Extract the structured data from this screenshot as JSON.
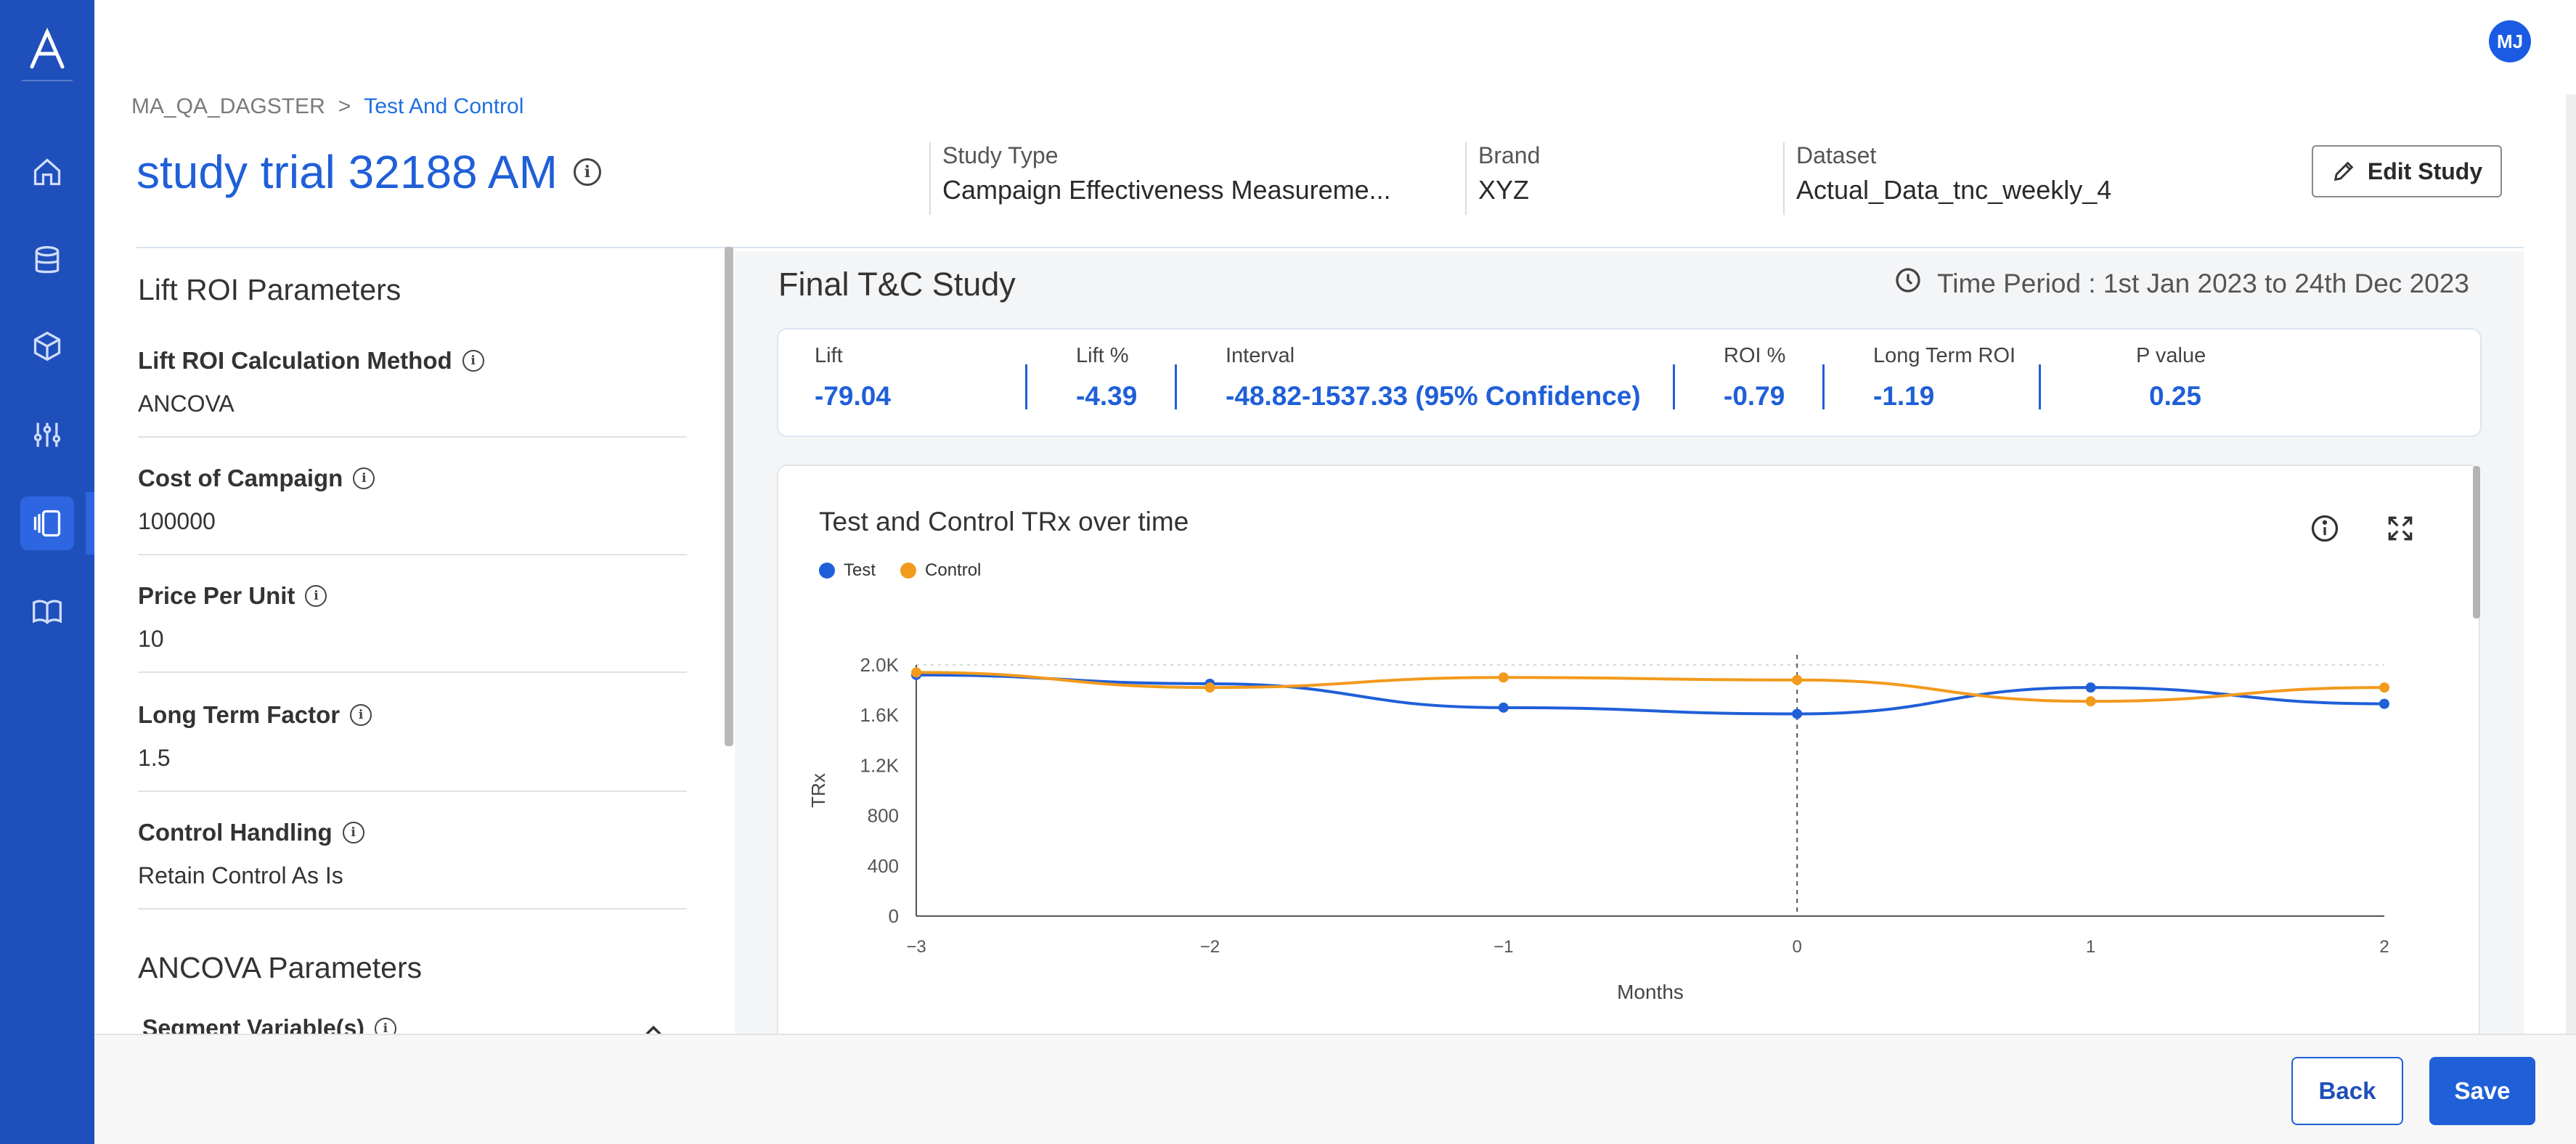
{
  "user": {
    "initials": "MJ"
  },
  "breadcrumb": {
    "root": "MA_QA_DAGSTER",
    "separator": ">",
    "current": "Test And Control"
  },
  "study": {
    "title": "study trial 32188 AM",
    "study_type_label": "Study Type",
    "study_type_value": "Campaign Effectiveness Measureme...",
    "brand_label": "Brand",
    "brand_value": "XYZ",
    "dataset_label": "Dataset",
    "dataset_value": "Actual_Data_tnc_weekly_4",
    "edit_label": "Edit Study"
  },
  "lift_roi": {
    "heading": "Lift ROI Parameters",
    "params": [
      {
        "label": "Lift ROI Calculation Method",
        "value": "ANCOVA"
      },
      {
        "label": "Cost of Campaign",
        "value": "100000"
      },
      {
        "label": "Price Per Unit",
        "value": "10"
      },
      {
        "label": "Long Term Factor",
        "value": "1.5"
      },
      {
        "label": "Control Handling",
        "value": "Retain Control As Is"
      }
    ]
  },
  "ancova": {
    "heading": "ANCOVA Parameters",
    "segment_label": "Segment Variable(s)"
  },
  "final": {
    "title": "Final T&C Study",
    "time_period": "Time Period : 1st Jan 2023 to 24th Dec 2023",
    "metrics": [
      {
        "label": "Lift",
        "value": "-79.04"
      },
      {
        "label": "Lift %",
        "value": "-4.39"
      },
      {
        "label": "Interval",
        "value": "-48.82-1537.33 (95% Confidence)"
      },
      {
        "label": "ROI %",
        "value": "-0.79"
      },
      {
        "label": "Long Term ROI",
        "value": "-1.19"
      },
      {
        "label": "P value",
        "value": "0.25"
      }
    ]
  },
  "chart": {
    "title": "Test and Control TRx over time",
    "legend": [
      "Test",
      "Control"
    ],
    "colors": {
      "test": "#1f5fd8",
      "control": "#f29a1c"
    }
  },
  "chart_data": {
    "type": "line",
    "title": "Test and Control TRx over time",
    "xlabel": "Months",
    "ylabel": "TRx",
    "x": [
      -3,
      -2,
      -1,
      0,
      1,
      2
    ],
    "x_tick_labels": [
      "−3",
      "−2",
      "−1",
      "0",
      "1",
      "2"
    ],
    "y_ticks": [
      0,
      400,
      800,
      1200,
      1600,
      2000
    ],
    "y_tick_labels": [
      "0",
      "400",
      "800",
      "1.2K",
      "1.6K",
      "2.0K"
    ],
    "ylim": [
      0,
      2000
    ],
    "xlim": [
      -3,
      2
    ],
    "series": [
      {
        "name": "Test",
        "values": [
          1920,
          1850,
          1660,
          1610,
          1820,
          1690
        ]
      },
      {
        "name": "Control",
        "values": [
          1940,
          1820,
          1900,
          1880,
          1710,
          1820
        ]
      }
    ],
    "reference_line_x": 0,
    "legend_position": "top-left",
    "grid": false
  },
  "footer": {
    "back_label": "Back",
    "save_label": "Save"
  }
}
